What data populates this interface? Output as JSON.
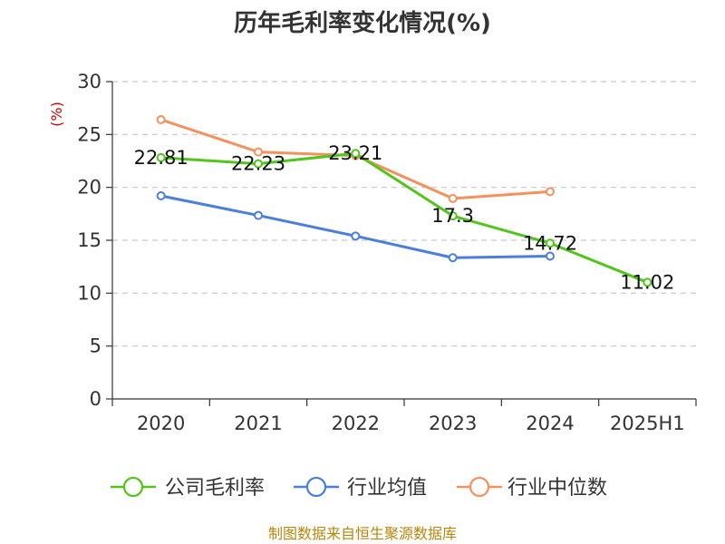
{
  "chart_data": {
    "type": "line",
    "title": "历年毛利率变化情况(%)",
    "ylabel": "(%)",
    "xlabel": "",
    "categories": [
      "2020",
      "2021",
      "2022",
      "2023",
      "2024",
      "2025H1"
    ],
    "ylim": [
      0,
      30
    ],
    "yticks": [
      0,
      5,
      10,
      15,
      20,
      25,
      30
    ],
    "grid": true,
    "legend_position": "bottom",
    "series": [
      {
        "name": "公司毛利率",
        "color": "#52c41a",
        "values": [
          22.81,
          22.23,
          23.21,
          17.3,
          14.72,
          11.02
        ],
        "labels": [
          "22.81",
          "22.23",
          "23.21",
          "17.3",
          "14.72",
          "11.02"
        ]
      },
      {
        "name": "行业均值",
        "color": "#4a7fdc",
        "values": [
          19.2,
          17.35,
          15.4,
          13.35,
          13.5,
          null
        ]
      },
      {
        "name": "行业中位数",
        "color": "#f5915c",
        "values": [
          26.4,
          23.35,
          23.0,
          18.95,
          19.6,
          null
        ]
      }
    ],
    "source": "制图数据来自恒生聚源数据库"
  }
}
